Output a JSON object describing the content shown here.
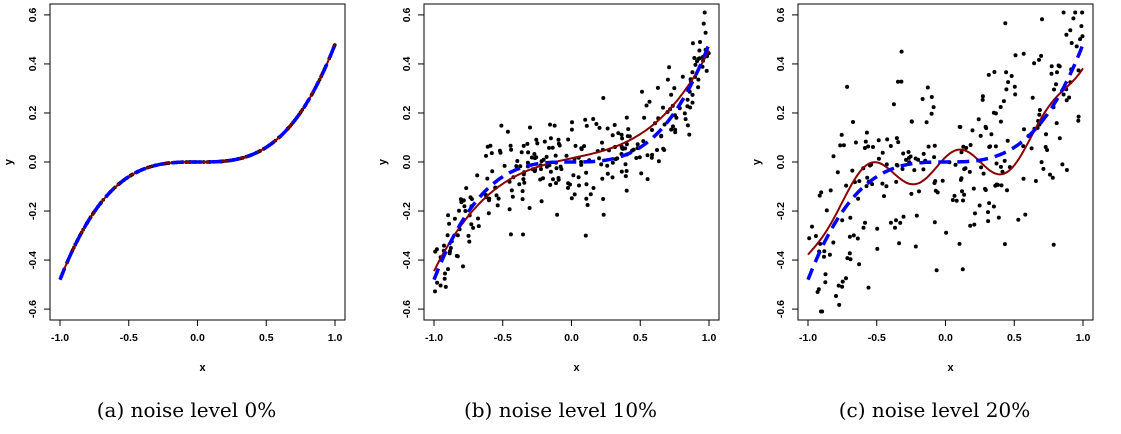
{
  "chart_data": [
    {
      "type": "scatter",
      "caption": "(a) noise level 0%",
      "xlabel": "x",
      "ylabel": "y",
      "xlim": [
        -1.0,
        1.0
      ],
      "ylim": [
        -0.62,
        0.62
      ],
      "xticks": [
        "-1.0",
        "-0.5",
        "0.0",
        "0.5",
        "1.0"
      ],
      "yticks": [
        "-0.6",
        "-0.4",
        "-0.2",
        "0.0",
        "0.2",
        "0.4",
        "0.6"
      ],
      "noise": 0.0,
      "n_points": 200,
      "series": [
        {
          "kind": "points",
          "color": "#000000",
          "values": "cubic 0.48x^3 sampled, no noise"
        },
        {
          "kind": "fit",
          "color": "#8b0000",
          "style": "solid",
          "coefficients": [
            0.0,
            0.0,
            0.0,
            0.48
          ]
        },
        {
          "kind": "truth",
          "color": "#0000ff",
          "style": "dashed",
          "coefficients": [
            0.0,
            0.0,
            0.0,
            0.48
          ]
        }
      ]
    },
    {
      "type": "scatter",
      "caption": "(b) noise level 10%",
      "xlabel": "x",
      "ylabel": "y",
      "xlim": [
        -1.0,
        1.0
      ],
      "ylim": [
        -0.62,
        0.62
      ],
      "xticks": [
        "-1.0",
        "-0.5",
        "0.0",
        "0.5",
        "1.0"
      ],
      "yticks": [
        "-0.6",
        "-0.4",
        "-0.2",
        "0.0",
        "0.2",
        "0.4",
        "0.6"
      ],
      "noise": 0.1,
      "n_points": 280,
      "series": [
        {
          "kind": "points",
          "color": "#000000",
          "values": "0.48x^3 + noise sd 0.10"
        },
        {
          "kind": "fit",
          "color": "#8b0000",
          "style": "solid",
          "coefficients": [
            0.015,
            0.12,
            -0.01,
            0.33
          ]
        },
        {
          "kind": "truth",
          "color": "#0000ff",
          "style": "dashed",
          "coefficients": [
            0.0,
            0.0,
            0.0,
            0.48
          ]
        }
      ]
    },
    {
      "type": "scatter",
      "caption": "(c) noise level 20%",
      "xlabel": "x",
      "ylabel": "y",
      "xlim": [
        -1.0,
        1.0
      ],
      "ylim": [
        -0.62,
        0.62
      ],
      "xticks": [
        "-1.0",
        "-0.5",
        "0.0",
        "0.5",
        "1.0"
      ],
      "yticks": [
        "-0.6",
        "-0.4",
        "-0.2",
        "0.0",
        "0.2",
        "0.4",
        "0.6"
      ],
      "noise": 0.2,
      "n_points": 260,
      "series": [
        {
          "kind": "points",
          "color": "#000000",
          "values": "0.48x^3 + noise sd 0.20"
        },
        {
          "kind": "fit",
          "color": "#8b0000",
          "style": "solid",
          "coefficients": [
            -0.02,
            0.0,
            0.05,
            0.38
          ],
          "wiggle": 0.07
        },
        {
          "kind": "truth",
          "color": "#0000ff",
          "style": "dashed",
          "coefficients": [
            0.0,
            0.0,
            0.0,
            0.48
          ]
        }
      ]
    }
  ]
}
